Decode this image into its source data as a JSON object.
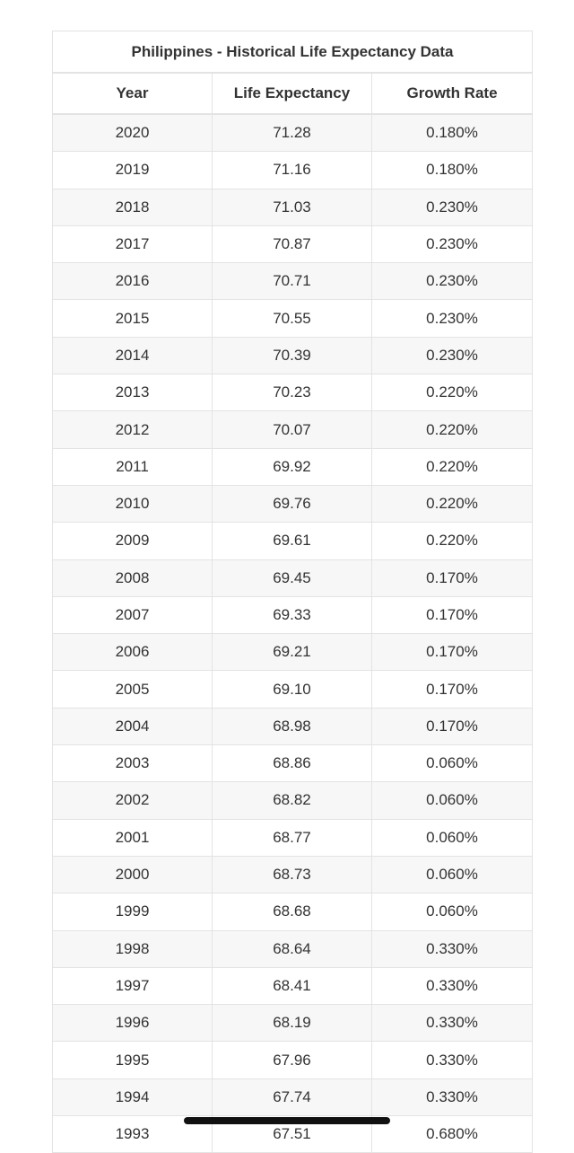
{
  "table": {
    "title": "Philippines - Historical Life Expectancy Data",
    "header": [
      "Year",
      "Life Expectancy",
      "Growth Rate"
    ],
    "rows": [
      [
        "2020",
        "71.28",
        "0.180%"
      ],
      [
        "2019",
        "71.16",
        "0.180%"
      ],
      [
        "2018",
        "71.03",
        "0.230%"
      ],
      [
        "2017",
        "70.87",
        "0.230%"
      ],
      [
        "2016",
        "70.71",
        "0.230%"
      ],
      [
        "2015",
        "70.55",
        "0.230%"
      ],
      [
        "2014",
        "70.39",
        "0.230%"
      ],
      [
        "2013",
        "70.23",
        "0.220%"
      ],
      [
        "2012",
        "70.07",
        "0.220%"
      ],
      [
        "2011",
        "69.92",
        "0.220%"
      ],
      [
        "2010",
        "69.76",
        "0.220%"
      ],
      [
        "2009",
        "69.61",
        "0.220%"
      ],
      [
        "2008",
        "69.45",
        "0.170%"
      ],
      [
        "2007",
        "69.33",
        "0.170%"
      ],
      [
        "2006",
        "69.21",
        "0.170%"
      ],
      [
        "2005",
        "69.10",
        "0.170%"
      ],
      [
        "2004",
        "68.98",
        "0.170%"
      ],
      [
        "2003",
        "68.86",
        "0.060%"
      ],
      [
        "2002",
        "68.82",
        "0.060%"
      ],
      [
        "2001",
        "68.77",
        "0.060%"
      ],
      [
        "2000",
        "68.73",
        "0.060%"
      ],
      [
        "1999",
        "68.68",
        "0.060%"
      ],
      [
        "1998",
        "68.64",
        "0.330%"
      ],
      [
        "1997",
        "68.41",
        "0.330%"
      ],
      [
        "1996",
        "68.19",
        "0.330%"
      ],
      [
        "1995",
        "67.96",
        "0.330%"
      ],
      [
        "1994",
        "67.74",
        "0.330%"
      ],
      [
        "1993",
        "67.51",
        "0.680%"
      ]
    ]
  }
}
